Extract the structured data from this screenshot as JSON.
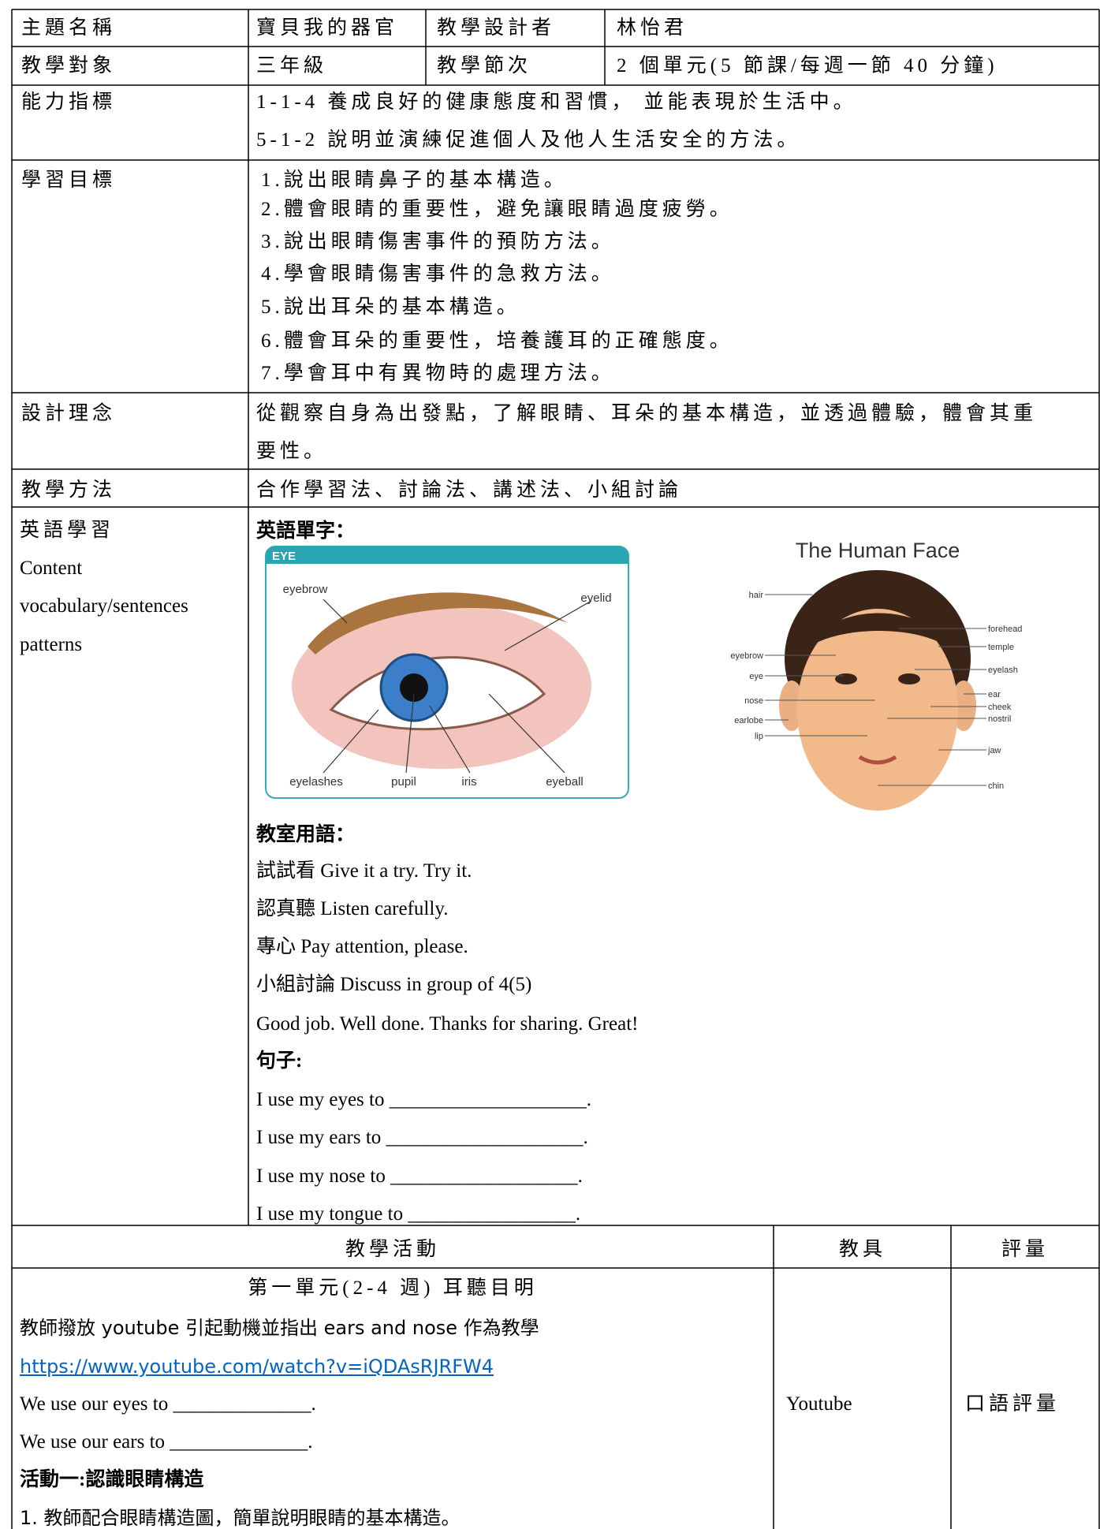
{
  "info": {
    "rows": [
      [
        "主題名稱",
        "寶貝我的器官",
        "教學設計者",
        "林怡君"
      ],
      [
        "教學對象",
        "三年級",
        "教學節次",
        "2 個單元(5 節課/每週一節 40 分鐘)"
      ]
    ]
  },
  "ability": {
    "label": "能力指標",
    "lines": [
      "1-1-4 養成良好的健康態度和習慣， 並能表現於生活中。",
      "5-1-2 說明並演練促進個人及他人生活安全的方法。"
    ]
  },
  "goals": {
    "label": "學習目標",
    "lines": [
      "1.說出眼睛鼻子的基本構造。",
      "2.體會眼睛的重要性，避免讓眼睛過度疲勞。",
      "3.說出眼睛傷害事件的預防方法。",
      "4.學會眼睛傷害事件的急救方法。",
      "5.說出耳朵的基本構造。",
      "6.體會耳朵的重要性，培養護耳的正確態度。",
      "7.學會耳中有異物時的處理方法。"
    ]
  },
  "concept": {
    "label": "設計理念",
    "lines": [
      "從觀察自身為出發點，了解眼睛、耳朵的基本構造，並透過體驗，體會其重",
      "要性。"
    ]
  },
  "method": {
    "label": "教學方法",
    "text": "合作學習法、討論法、講述法、小組討論"
  },
  "english": {
    "label_lines": [
      "英語學習",
      "Content",
      "vocabulary/sentences",
      "patterns"
    ],
    "vocab_heading": "英語單字：",
    "eye_figure": {
      "title": "EYE",
      "labels": [
        "eyebrow",
        "eyelid",
        "eyelashes",
        "pupil",
        "iris",
        "eyeball"
      ]
    },
    "face_figure": {
      "title": "The Human Face",
      "labels": [
        "hair",
        "eyebrow",
        "eye",
        "nose",
        "earlobe",
        "lip",
        "forehead",
        "temple",
        "eyelash",
        "ear",
        "cheek",
        "nostril",
        "jaw",
        "chin"
      ]
    },
    "classroom_heading": "教室用語：",
    "classroom_lines": [
      "試試看  Give it a try. Try it.",
      "認真聽  Listen carefully.",
      "專心  Pay attention, please.",
      "小組討論  Discuss in group of 4(5)",
      "Good job. Well done. Thanks for sharing. Great!"
    ],
    "sentence_heading": "句子:",
    "sentences": [
      "I use my eyes to ____________________.",
      "I use my ears to ____________________.",
      "I use my nose to ___________________.",
      "I use my tongue to _________________."
    ]
  },
  "activities": {
    "headers": [
      "教學活動",
      "教具",
      "評量"
    ],
    "unit_title": "第一單元(2-4 週) 耳聽目明",
    "intro": "教師撥放 youtube 引起動機並指出 ears and nose  作為教學",
    "link": "https://www.youtube.com/watch?v=iQDAsRJRFW4",
    "lines": [
      "We use our eyes to ______________.",
      "We use our ears to ______________."
    ],
    "activity_title": "活動一:認識眼睛構造",
    "steps": [
      "1.  教師配合眼睛構造圖，簡單說明眼睛的基本構造。"
    ],
    "tool": "Youtube",
    "assessment": "口語評量"
  }
}
